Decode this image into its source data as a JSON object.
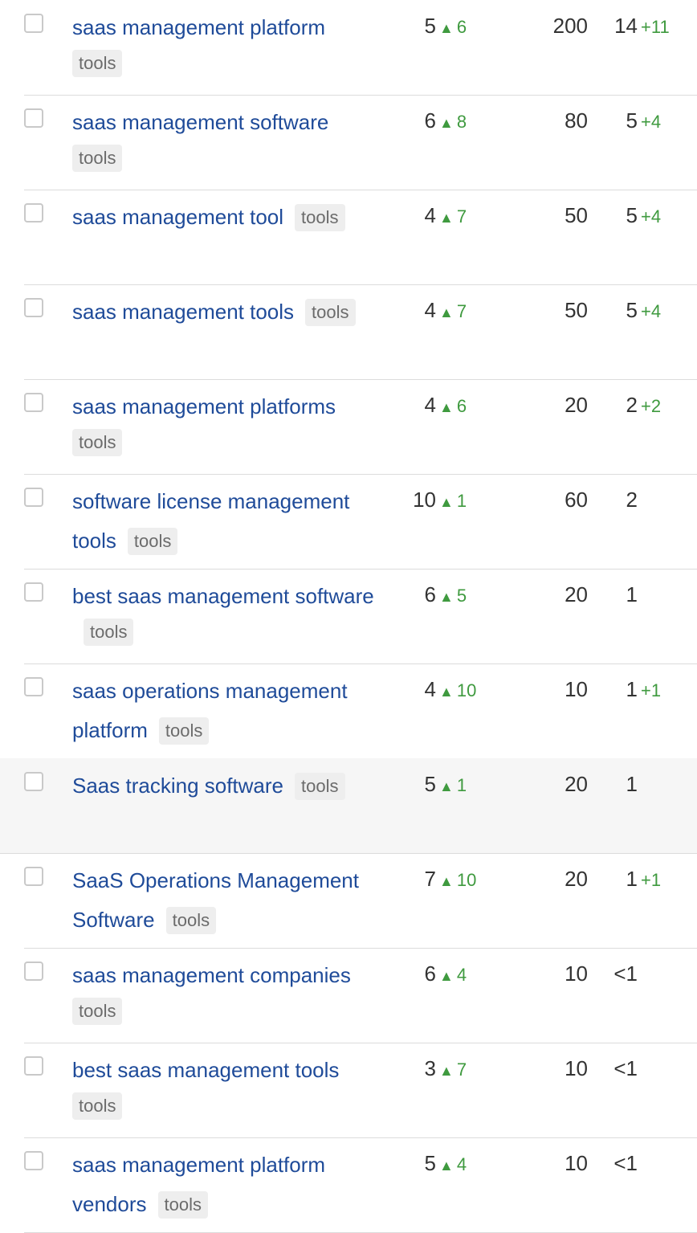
{
  "colors": {
    "link": "#1f4b99",
    "positive": "#3f9a3f",
    "tag_bg": "#eeeeee",
    "divider": "#dcdcdc"
  },
  "icons": {
    "trend_up": "triangle-up-icon",
    "checkbox": "checkbox-icon"
  },
  "rows": [
    {
      "keyword": "saas management platform",
      "tag": "tools",
      "kd": "5",
      "kd_delta": "6",
      "volume": "200",
      "traffic": "14",
      "traffic_delta": "+11"
    },
    {
      "keyword": "saas management software",
      "tag": "tools",
      "kd": "6",
      "kd_delta": "8",
      "volume": "80",
      "traffic": "5",
      "traffic_delta": "+4"
    },
    {
      "keyword": "saas management tool",
      "tag": "tools",
      "kd": "4",
      "kd_delta": "7",
      "volume": "50",
      "traffic": "5",
      "traffic_delta": "+4"
    },
    {
      "keyword": "saas management tools",
      "tag": "tools",
      "kd": "4",
      "kd_delta": "7",
      "volume": "50",
      "traffic": "5",
      "traffic_delta": "+4"
    },
    {
      "keyword": "saas management platforms",
      "tag": "tools",
      "kd": "4",
      "kd_delta": "6",
      "volume": "20",
      "traffic": "2",
      "traffic_delta": "+2"
    },
    {
      "keyword": "software license management tools",
      "tag": "tools",
      "kd": "10",
      "kd_delta": "1",
      "volume": "60",
      "traffic": "2",
      "traffic_delta": ""
    },
    {
      "keyword": "best saas management software",
      "tag": "tools",
      "kd": "6",
      "kd_delta": "5",
      "volume": "20",
      "traffic": "1",
      "traffic_delta": ""
    },
    {
      "keyword": "saas operations management platform",
      "tag": "tools",
      "kd": "4",
      "kd_delta": "10",
      "volume": "10",
      "traffic": "1",
      "traffic_delta": "+1"
    },
    {
      "keyword": "Saas tracking software",
      "tag": "tools",
      "kd": "5",
      "kd_delta": "1",
      "volume": "20",
      "traffic": "1",
      "traffic_delta": ""
    },
    {
      "keyword": "SaaS Operations Management Software",
      "tag": "tools",
      "kd": "7",
      "kd_delta": "10",
      "volume": "20",
      "traffic": "1",
      "traffic_delta": "+1"
    },
    {
      "keyword": "saas management companies",
      "tag": "tools",
      "kd": "6",
      "kd_delta": "4",
      "volume": "10",
      "traffic": "<1",
      "traffic_delta": ""
    },
    {
      "keyword": "best saas management tools",
      "tag": "tools",
      "kd": "3",
      "kd_delta": "7",
      "volume": "10",
      "traffic": "<1",
      "traffic_delta": ""
    },
    {
      "keyword": "saas management platform vendors",
      "tag": "tools",
      "kd": "5",
      "kd_delta": "4",
      "volume": "10",
      "traffic": "<1",
      "traffic_delta": ""
    }
  ]
}
